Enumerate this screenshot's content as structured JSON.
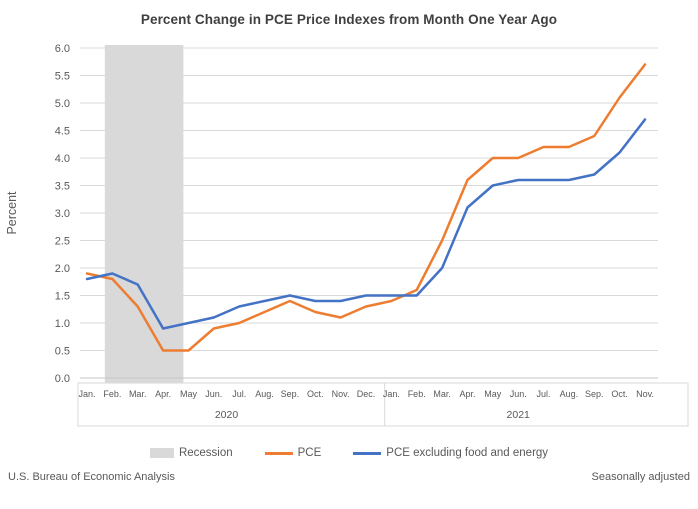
{
  "title": "Percent Change in PCE Price Indexes from Month One Year Ago",
  "chart_data": {
    "type": "line",
    "title": "Percent Change in PCE Price Indexes from Month One Year Ago",
    "ylabel": "Percent",
    "ylim": [
      0.0,
      6.0
    ],
    "ytick_step": 0.5,
    "yticks": [
      "0.0",
      "0.5",
      "1.0",
      "1.5",
      "2.0",
      "2.5",
      "3.0",
      "3.5",
      "4.0",
      "4.5",
      "5.0",
      "5.5",
      "6.0"
    ],
    "grid": true,
    "legend_position": "bottom",
    "x_axis": {
      "month_labels": [
        "Jan.",
        "Feb.",
        "Mar.",
        "Apr.",
        "May",
        "Jun.",
        "Jul.",
        "Aug.",
        "Sep.",
        "Oct.",
        "Nov.",
        "Dec.",
        "Jan.",
        "Feb.",
        "Mar.",
        "Apr.",
        "May",
        "Jun.",
        "Jul.",
        "Aug.",
        "Sep.",
        "Oct.",
        "Nov."
      ],
      "year_groups": [
        {
          "label": "2020",
          "count": 12
        },
        {
          "label": "2021",
          "count": 11
        }
      ]
    },
    "series": [
      {
        "name": "PCE",
        "color": "#ED7D31",
        "values": [
          1.9,
          1.8,
          1.3,
          0.5,
          0.5,
          0.9,
          1.0,
          1.2,
          1.4,
          1.2,
          1.1,
          1.3,
          1.4,
          1.6,
          2.5,
          3.6,
          4.0,
          4.0,
          4.2,
          4.2,
          4.4,
          5.1,
          5.7
        ]
      },
      {
        "name": "PCE excluding food and energy",
        "color": "#4472C4",
        "values": [
          1.8,
          1.9,
          1.7,
          0.9,
          1.0,
          1.1,
          1.3,
          1.4,
          1.5,
          1.4,
          1.4,
          1.5,
          1.5,
          1.5,
          2.0,
          3.1,
          3.5,
          3.6,
          3.6,
          3.6,
          3.7,
          4.1,
          4.7
        ]
      }
    ],
    "recession_band": {
      "label": "Recession",
      "color": "#D9D9D9",
      "start_index": 0.7,
      "end_index": 3.8
    }
  },
  "colors": {
    "gridline": "#D9D9D9",
    "baseline": "#C6C6C6",
    "axis_text": "#595959",
    "title_text": "#3F3F3F"
  },
  "legend": {
    "items": [
      {
        "label": "Recession",
        "type": "box",
        "color": "#D9D9D9"
      },
      {
        "label": "PCE",
        "type": "line",
        "color": "#ED7D31"
      },
      {
        "label": "PCE excluding food and energy",
        "type": "line",
        "color": "#4472C4"
      }
    ]
  },
  "footer": {
    "left": "U.S. Bureau of Economic Analysis",
    "right": "Seasonally adjusted"
  }
}
